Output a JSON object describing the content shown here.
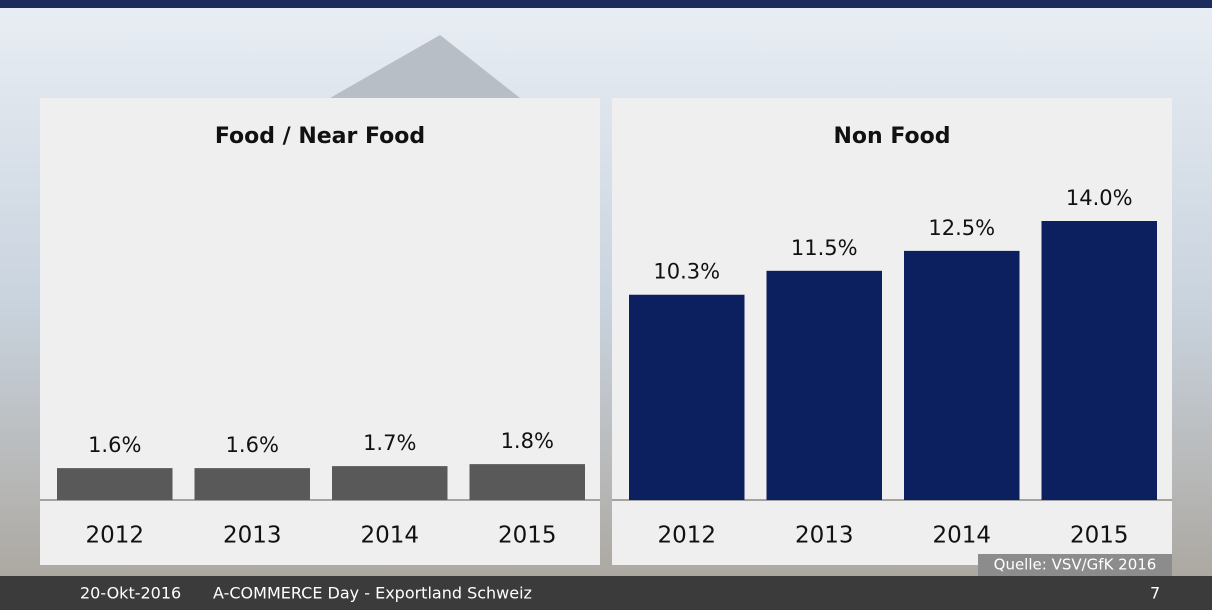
{
  "chart_data": [
    {
      "type": "bar",
      "title": "Food / Near Food",
      "categories": [
        "2012",
        "2013",
        "2014",
        "2015"
      ],
      "values": [
        1.6,
        1.6,
        1.7,
        1.8
      ],
      "value_labels": [
        "1.6%",
        "1.6%",
        "1.7%",
        "1.8%"
      ],
      "color": "#595959"
    },
    {
      "type": "bar",
      "title": "Non Food",
      "categories": [
        "2012",
        "2013",
        "2014",
        "2015"
      ],
      "values": [
        10.3,
        11.5,
        12.5,
        14.0
      ],
      "value_labels": [
        "10.3%",
        "11.5%",
        "12.5%",
        "14.0%"
      ],
      "color": "#0c1f5e"
    }
  ],
  "source": "Quelle: VSV/GfK 2016",
  "footer": {
    "date": "20-Okt-2016",
    "event": "A-COMMERCE Day - Exportland Schweiz",
    "page": "7"
  }
}
